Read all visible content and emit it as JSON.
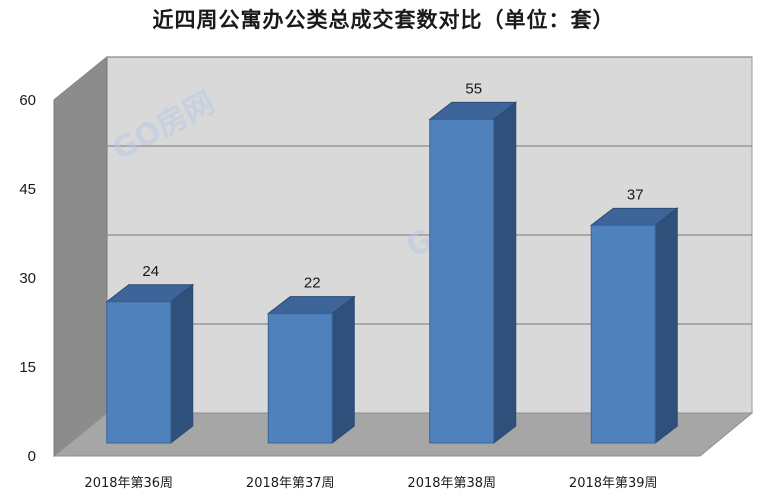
{
  "chart_data": {
    "type": "bar",
    "title": "近四周公寓办公类总成交套数对比（单位：套）",
    "categories": [
      "2018年第36周",
      "2018年第37周",
      "2018年第38周",
      "2018年第39周"
    ],
    "values": [
      24,
      22,
      55,
      37
    ],
    "ylim": [
      0,
      60
    ],
    "yticks": [
      0,
      15,
      30,
      45,
      60
    ],
    "xlabel": "",
    "ylabel": "",
    "grid": true,
    "legend": "none",
    "style": "3d-column"
  },
  "colors": {
    "bar_front": "#4f81bd",
    "bar_side": "#30507c",
    "bar_top": "#3d6599",
    "back_wall": "#d9d9d9",
    "side_wall": "#8c8c8c",
    "floor": "#a6a6a6",
    "gridline": "#8a8a8a"
  },
  "watermark": "GO房网"
}
